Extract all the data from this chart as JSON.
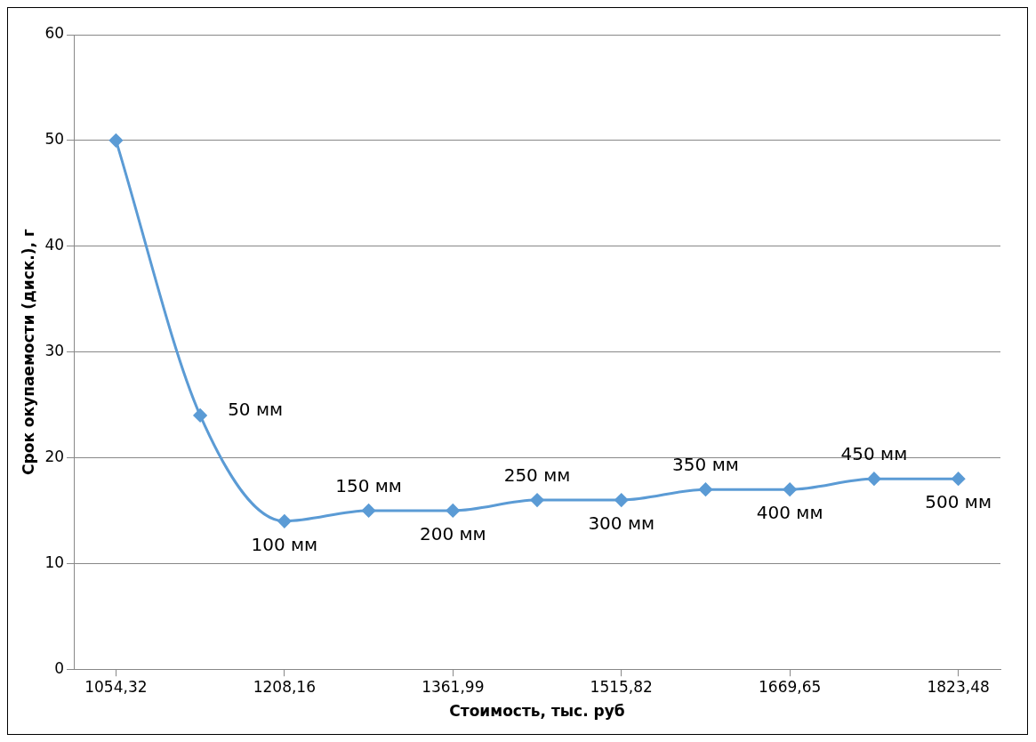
{
  "chart_data": {
    "type": "line",
    "xlabel": "Стоимость, тыс. руб",
    "ylabel": "Срок окупаемости (диск.), г",
    "x": [
      1054.32,
      1131.24,
      1208.16,
      1285.08,
      1361.99,
      1438.91,
      1515.82,
      1592.74,
      1669.65,
      1746.57,
      1823.48
    ],
    "series": [
      {
        "color": "#5b9bd5",
        "values": [
          50,
          24,
          14,
          15,
          15,
          16,
          16,
          17,
          17,
          18,
          18
        ]
      }
    ],
    "xlim": [
      1015.86,
      1861.94
    ],
    "xticks": [
      {
        "value": 1054.32,
        "label": "1054,32"
      },
      {
        "value": 1208.16,
        "label": "1208,16"
      },
      {
        "value": 1361.99,
        "label": "1361,99"
      },
      {
        "value": 1515.82,
        "label": "1515,82"
      },
      {
        "value": 1669.65,
        "label": "1669,65"
      },
      {
        "value": 1823.48,
        "label": "1823,48"
      }
    ],
    "annotations": [
      {
        "text": "50 мм",
        "x": 1131.24,
        "y": 24
      },
      {
        "text": "100 мм",
        "x": 1208.16,
        "y": 14
      },
      {
        "text": "150 мм",
        "x": 1285.08,
        "y": 15
      },
      {
        "text": "200 мм",
        "x": 1361.99,
        "y": 15
      },
      {
        "text": "250 мм",
        "x": 1438.91,
        "y": 16
      },
      {
        "text": "300 мм",
        "x": 1515.82,
        "y": 16
      },
      {
        "text": "350 мм",
        "x": 1592.74,
        "y": 17
      },
      {
        "text": "400 мм",
        "x": 1669.65,
        "y": 17
      },
      {
        "text": "450 мм",
        "x": 1746.57,
        "y": 18
      },
      {
        "text": "500 мм",
        "x": 1823.48,
        "y": 18
      }
    ],
    "ylim": [
      0,
      60
    ],
    "yticks": [
      0,
      10,
      20,
      30,
      40,
      50,
      60
    ],
    "grid": "y",
    "legend": false,
    "marker": "diamond",
    "line_style": "solid"
  }
}
